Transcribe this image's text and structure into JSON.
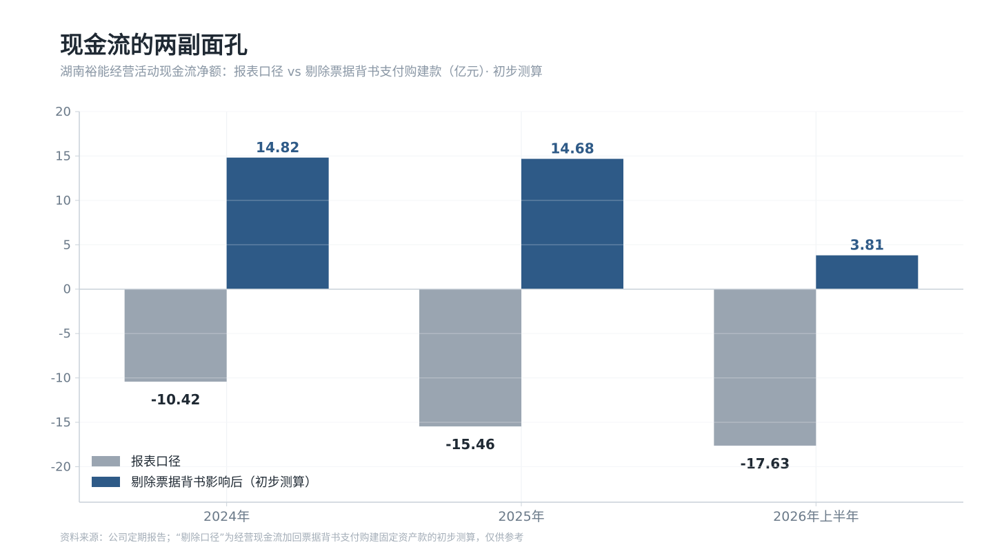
{
  "header": {
    "title": "现金流的两副面孔",
    "subtitle": "湖南裕能经营活动现金流净额：报表口径 vs 剔除票据背书支付购建款（亿元）· 初步测算"
  },
  "footer": {
    "note": "资料来源：公司定期报告；“剔除口径”为经营现金流加回票据背书支付购建固定资产款的初步测算，仅供参考"
  },
  "chart_data": {
    "type": "bar",
    "categories": [
      "2024年",
      "2025年",
      "2026年上半年"
    ],
    "series": [
      {
        "name": "报表口径",
        "values": [
          -10.42,
          -15.46,
          -17.63
        ],
        "color": "#9aa5b1"
      },
      {
        "name": "剔除票据背书影响后（初步测算）",
        "values": [
          14.82,
          14.68,
          3.81
        ],
        "color": "#2e5a87"
      }
    ],
    "data_labels": [
      [
        "-10.42",
        "-15.46",
        "-17.63"
      ],
      [
        "14.82",
        "14.68",
        "3.81"
      ]
    ],
    "label_colors": [
      "#1f2933",
      "#2e5a87"
    ],
    "y_ticks": [
      20,
      15,
      10,
      5,
      0,
      -5,
      -10,
      -15,
      -20
    ],
    "y_tick_labels": [
      "20",
      "15",
      "10",
      "5",
      "0",
      "-5",
      "-10",
      "-15",
      "-20"
    ],
    "ylim": [
      -24,
      20
    ],
    "grid": true,
    "legend_position": "bottom-left"
  }
}
